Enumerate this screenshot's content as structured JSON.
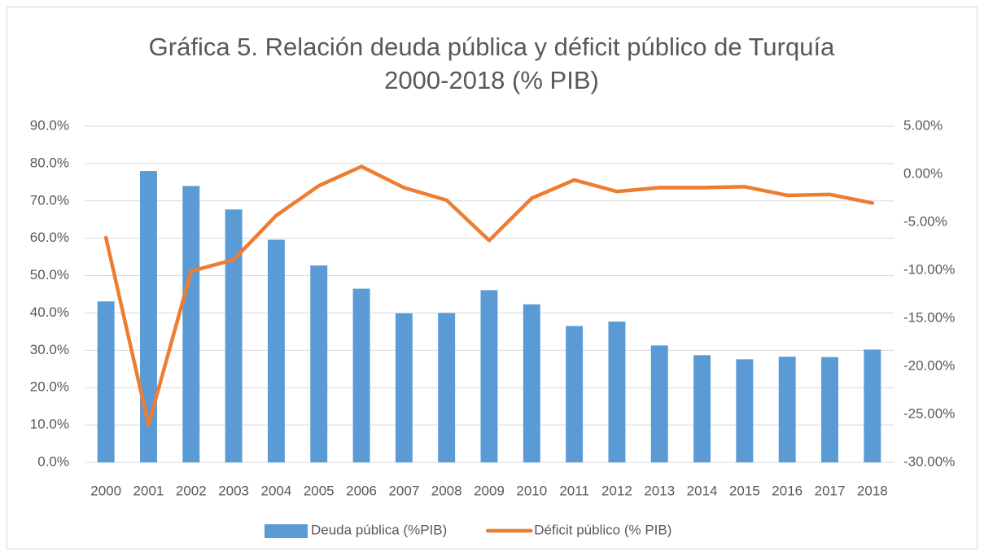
{
  "chart_data": {
    "type": "bar_line",
    "title": [
      "Gráfica 5. Relación deuda pública y déficit público de Turquía",
      "2000-2018 (% PIB)"
    ],
    "categories": [
      "2000",
      "2001",
      "2002",
      "2003",
      "2004",
      "2005",
      "2006",
      "2007",
      "2008",
      "2009",
      "2010",
      "2011",
      "2012",
      "2013",
      "2014",
      "2015",
      "2016",
      "2017",
      "2018"
    ],
    "series": [
      {
        "name": "Deuda pública (%PIB)",
        "type": "bar",
        "color": "#5b9bd5",
        "values": [
          43.1,
          78,
          74,
          67.7,
          59.6,
          52.7,
          46.5,
          39.9,
          40,
          46.1,
          42.3,
          36.5,
          37.7,
          31.3,
          28.7,
          27.6,
          28.3,
          28.2,
          30.2
        ]
      },
      {
        "name": "Déficit público (% PIB)",
        "type": "line",
        "axis": "y2",
        "color": "#ed7d31",
        "values": [
          -6.6,
          -26.1,
          -10.1,
          -8.9,
          -4.3,
          -1.2,
          0.8,
          -1.4,
          -2.7,
          -6.9,
          -2.5,
          -0.6,
          -1.8,
          -1.4,
          -1.4,
          -1.3,
          -2.2,
          -2.1,
          -3.0
        ]
      }
    ],
    "ylim": [
      0,
      90
    ],
    "yticks": [
      {
        "value": 0,
        "label": "0.0%"
      },
      {
        "value": 10,
        "label": "10.0%"
      },
      {
        "value": 20,
        "label": "20.0%"
      },
      {
        "value": 30,
        "label": "30.0%"
      },
      {
        "value": 40,
        "label": "40.0%"
      },
      {
        "value": 50,
        "label": "50.0%"
      },
      {
        "value": 60,
        "label": "60.0%"
      },
      {
        "value": 70,
        "label": "70.0%"
      },
      {
        "value": 80,
        "label": "80.0%"
      },
      {
        "value": 90,
        "label": "90.0%"
      }
    ],
    "y2lim": [
      -30,
      5
    ],
    "y2ticks": [
      {
        "value": -30,
        "label": "-30.00%"
      },
      {
        "value": -25,
        "label": "-25.00%"
      },
      {
        "value": -20,
        "label": "-20.00%"
      },
      {
        "value": -15,
        "label": "-15.00%"
      },
      {
        "value": -10,
        "label": "-10.00%"
      },
      {
        "value": -5,
        "label": "-5.00%"
      },
      {
        "value": 0,
        "label": "0.00%"
      },
      {
        "value": 5,
        "label": "5.00%"
      }
    ],
    "grid": true,
    "legend": "bottom"
  }
}
